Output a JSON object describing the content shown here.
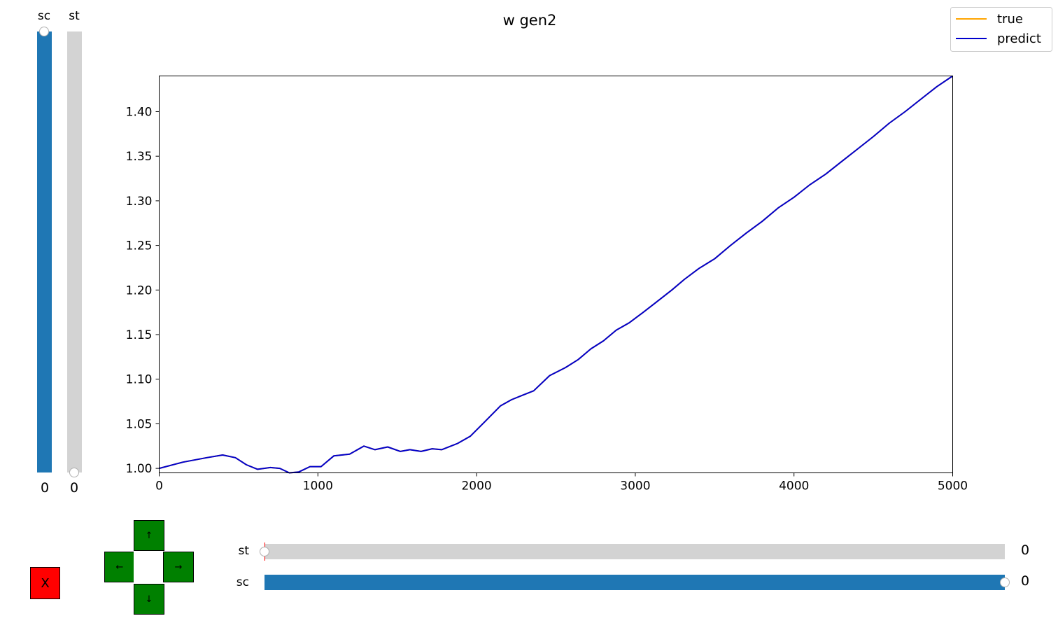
{
  "left_sliders": [
    {
      "label": "sc",
      "value": "0",
      "fill": 1.0
    },
    {
      "label": "st",
      "value": "0",
      "fill": 0.0
    }
  ],
  "bottom_sliders": [
    {
      "label": "st",
      "value": "0",
      "fill": 0.0
    },
    {
      "label": "sc",
      "value": "0",
      "fill": 1.0
    }
  ],
  "close_button": {
    "label": "X"
  },
  "dpad": {
    "up": "↑",
    "down": "↓",
    "left": "←",
    "right": "→"
  },
  "colors": {
    "slider_fill": "#1f77b4",
    "slider_track": "#d3d3d3",
    "dpad": "#008000",
    "close": "#ff0000",
    "true_line": "#ffa500",
    "predict_line": "#0000cd"
  },
  "chart_data": {
    "type": "line",
    "title": "w gen2",
    "xlabel": "",
    "ylabel": "",
    "xlim": [
      0,
      5000
    ],
    "ylim": [
      0.995,
      1.44
    ],
    "xticks": [
      0,
      1000,
      2000,
      3000,
      4000,
      5000
    ],
    "yticks": [
      1.0,
      1.05,
      1.1,
      1.15,
      1.2,
      1.25,
      1.3,
      1.35,
      1.4
    ],
    "grid": false,
    "legend": "top-right",
    "series": [
      {
        "name": "true",
        "color": "#ffa500",
        "points": [
          [
            0,
            1.0
          ],
          [
            150,
            1.007
          ],
          [
            300,
            1.012
          ],
          [
            400,
            1.015
          ],
          [
            480,
            1.012
          ],
          [
            550,
            1.004
          ],
          [
            620,
            0.999
          ],
          [
            700,
            1.001
          ],
          [
            760,
            1.0
          ],
          [
            820,
            0.995
          ],
          [
            880,
            0.996
          ],
          [
            950,
            1.002
          ],
          [
            1020,
            1.002
          ],
          [
            1100,
            1.014
          ],
          [
            1200,
            1.016
          ],
          [
            1290,
            1.025
          ],
          [
            1360,
            1.021
          ],
          [
            1440,
            1.024
          ],
          [
            1520,
            1.019
          ],
          [
            1580,
            1.021
          ],
          [
            1650,
            1.019
          ],
          [
            1720,
            1.022
          ],
          [
            1780,
            1.021
          ],
          [
            1880,
            1.028
          ],
          [
            1960,
            1.036
          ],
          [
            2050,
            1.052
          ],
          [
            2150,
            1.07
          ],
          [
            2220,
            1.077
          ],
          [
            2290,
            1.082
          ],
          [
            2360,
            1.087
          ],
          [
            2460,
            1.104
          ],
          [
            2560,
            1.113
          ],
          [
            2640,
            1.122
          ],
          [
            2720,
            1.134
          ],
          [
            2800,
            1.143
          ],
          [
            2880,
            1.155
          ],
          [
            2960,
            1.163
          ],
          [
            3050,
            1.175
          ],
          [
            3130,
            1.186
          ],
          [
            3230,
            1.2
          ],
          [
            3310,
            1.212
          ],
          [
            3400,
            1.224
          ],
          [
            3500,
            1.235
          ],
          [
            3600,
            1.25
          ],
          [
            3700,
            1.264
          ],
          [
            3800,
            1.277
          ],
          [
            3900,
            1.292
          ],
          [
            4000,
            1.304
          ],
          [
            4100,
            1.318
          ],
          [
            4200,
            1.33
          ],
          [
            4300,
            1.344
          ],
          [
            4400,
            1.358
          ],
          [
            4500,
            1.372
          ],
          [
            4600,
            1.387
          ],
          [
            4700,
            1.4
          ],
          [
            4800,
            1.414
          ],
          [
            4900,
            1.428
          ],
          [
            5000,
            1.44
          ]
        ]
      },
      {
        "name": "predict",
        "color": "#0000cd",
        "points": [
          [
            0,
            1.0
          ],
          [
            150,
            1.007
          ],
          [
            300,
            1.012
          ],
          [
            400,
            1.015
          ],
          [
            480,
            1.012
          ],
          [
            550,
            1.004
          ],
          [
            620,
            0.999
          ],
          [
            700,
            1.001
          ],
          [
            760,
            1.0
          ],
          [
            820,
            0.995
          ],
          [
            880,
            0.996
          ],
          [
            950,
            1.002
          ],
          [
            1020,
            1.002
          ],
          [
            1100,
            1.014
          ],
          [
            1200,
            1.016
          ],
          [
            1290,
            1.025
          ],
          [
            1360,
            1.021
          ],
          [
            1440,
            1.024
          ],
          [
            1520,
            1.019
          ],
          [
            1580,
            1.021
          ],
          [
            1650,
            1.019
          ],
          [
            1720,
            1.022
          ],
          [
            1780,
            1.021
          ],
          [
            1880,
            1.028
          ],
          [
            1960,
            1.036
          ],
          [
            2050,
            1.052
          ],
          [
            2150,
            1.07
          ],
          [
            2220,
            1.077
          ],
          [
            2290,
            1.082
          ],
          [
            2360,
            1.087
          ],
          [
            2460,
            1.104
          ],
          [
            2560,
            1.113
          ],
          [
            2640,
            1.122
          ],
          [
            2720,
            1.134
          ],
          [
            2800,
            1.143
          ],
          [
            2880,
            1.155
          ],
          [
            2960,
            1.163
          ],
          [
            3050,
            1.175
          ],
          [
            3130,
            1.186
          ],
          [
            3230,
            1.2
          ],
          [
            3310,
            1.212
          ],
          [
            3400,
            1.224
          ],
          [
            3500,
            1.235
          ],
          [
            3600,
            1.25
          ],
          [
            3700,
            1.264
          ],
          [
            3800,
            1.277
          ],
          [
            3900,
            1.292
          ],
          [
            4000,
            1.304
          ],
          [
            4100,
            1.318
          ],
          [
            4200,
            1.33
          ],
          [
            4300,
            1.344
          ],
          [
            4400,
            1.358
          ],
          [
            4500,
            1.372
          ],
          [
            4600,
            1.387
          ],
          [
            4700,
            1.4
          ],
          [
            4800,
            1.414
          ],
          [
            4900,
            1.428
          ],
          [
            5000,
            1.44
          ]
        ]
      }
    ]
  }
}
